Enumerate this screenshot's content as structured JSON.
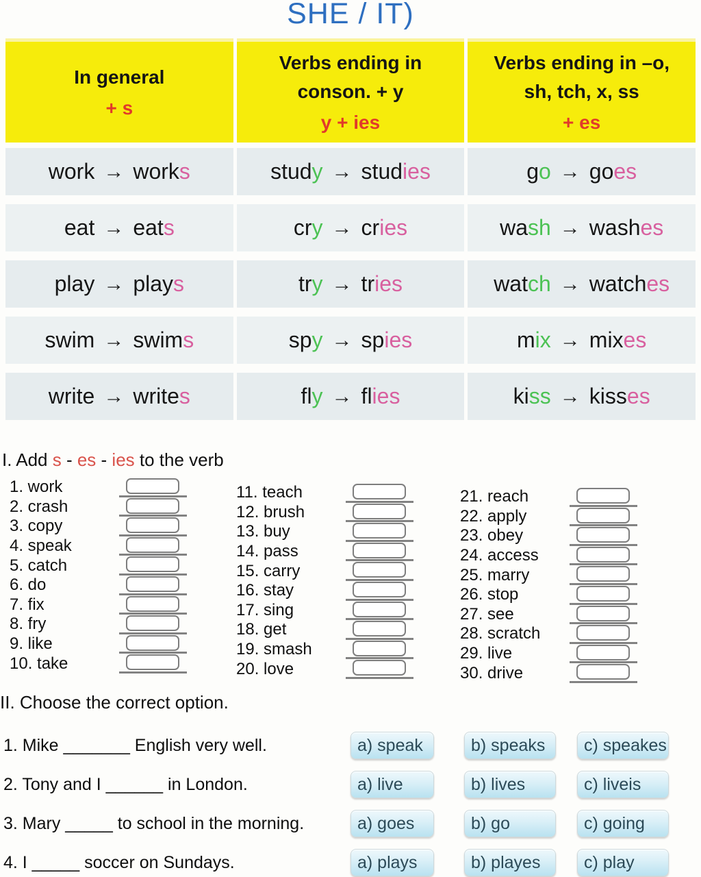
{
  "title": "SHE / IT)",
  "table": {
    "arrow": "→",
    "headers": [
      {
        "lines": [
          "In general"
        ],
        "rule": "+ s"
      },
      {
        "lines": [
          "Verbs ending in",
          "conson. + y"
        ],
        "rule": "y + ies"
      },
      {
        "lines": [
          "Verbs ending in –o,",
          "sh, tch, x, ss"
        ],
        "rule": "+ es"
      }
    ],
    "rows": [
      [
        {
          "b1": "work",
          "g": "",
          "r1": "work",
          "p": "s"
        },
        {
          "b1": "stud",
          "g": "y",
          "r1": "stud",
          "p": "ies"
        },
        {
          "b1": "g",
          "g": "o",
          "r1": "go",
          "p": "es"
        }
      ],
      [
        {
          "b1": "eat",
          "g": "",
          "r1": "eat",
          "p": "s"
        },
        {
          "b1": "cr",
          "g": "y",
          "r1": "cr",
          "p": "ies"
        },
        {
          "b1": "wa",
          "g": "sh",
          "r1": "wash",
          "p": "es"
        }
      ],
      [
        {
          "b1": "play",
          "g": "",
          "r1": "play",
          "p": "s"
        },
        {
          "b1": "tr",
          "g": "y",
          "r1": "tr",
          "p": "ies"
        },
        {
          "b1": "wat",
          "g": "ch",
          "r1": "watch",
          "p": "es"
        }
      ],
      [
        {
          "b1": "swim",
          "g": "",
          "r1": "swim",
          "p": "s"
        },
        {
          "b1": "sp",
          "g": "y",
          "r1": "sp",
          "p": "ies"
        },
        {
          "b1": "m",
          "g": "ix",
          "r1": "mix",
          "p": "es"
        }
      ],
      [
        {
          "b1": "write",
          "g": "",
          "r1": "write",
          "p": "s"
        },
        {
          "b1": "fl",
          "g": "y",
          "r1": "fl",
          "p": "ies"
        },
        {
          "b1": "ki",
          "g": "ss",
          "r1": "kiss",
          "p": "es"
        }
      ]
    ]
  },
  "section1": {
    "heading_segments": [
      {
        "text": "I. Add ",
        "color": "default"
      },
      {
        "text": "s",
        "color": "red"
      },
      {
        "text": " - ",
        "color": "default"
      },
      {
        "text": "es",
        "color": "red"
      },
      {
        "text": " - ",
        "color": "default"
      },
      {
        "text": "ies",
        "color": "red"
      },
      {
        "text": " to the verb",
        "color": "default"
      }
    ],
    "columns": [
      [
        "1. work",
        "2. crash",
        "3. copy",
        "4. speak",
        "5. catch",
        "6. do",
        "7. fix",
        "8. fry",
        "9. like",
        "10. take"
      ],
      [
        "11. teach",
        "12. brush",
        "13. buy",
        "14. pass",
        "15. carry",
        "16. stay",
        "17. sing",
        "18. get",
        "19. smash",
        "20. love"
      ],
      [
        "21. reach",
        "22. apply",
        "23. obey",
        "24. access",
        "25. marry",
        "26. stop",
        "27. see",
        "28. scratch",
        "29. live",
        "30. drive"
      ]
    ]
  },
  "section2": {
    "heading": "II. Choose the correct option.",
    "questions": [
      {
        "text": "1. Mike _______ English very well.",
        "options": [
          "a) speak",
          "b) speaks",
          "c) speakes"
        ]
      },
      {
        "text": "2. Tony and I ______ in London.",
        "options": [
          "a) live",
          "b) lives",
          "c) liveis"
        ]
      },
      {
        "text": "3. Mary _____ to school in the morning.",
        "options": [
          "a) goes",
          "b) go",
          "c) going"
        ]
      },
      {
        "text": "4. I _____ soccer on Sundays.",
        "options": [
          "a) plays",
          "b) playes",
          "c) play"
        ]
      }
    ]
  },
  "colors": {
    "title_blue": "#2e6fc0",
    "header_yellow": "#f6ec0b",
    "accent_red": "#e13a2a",
    "section_red": "#d9534b",
    "suffix_pink": "#d8609f",
    "highlight_green": "#4cc254",
    "row_bg": "#e6ecee",
    "button_text": "#2c4a57"
  }
}
